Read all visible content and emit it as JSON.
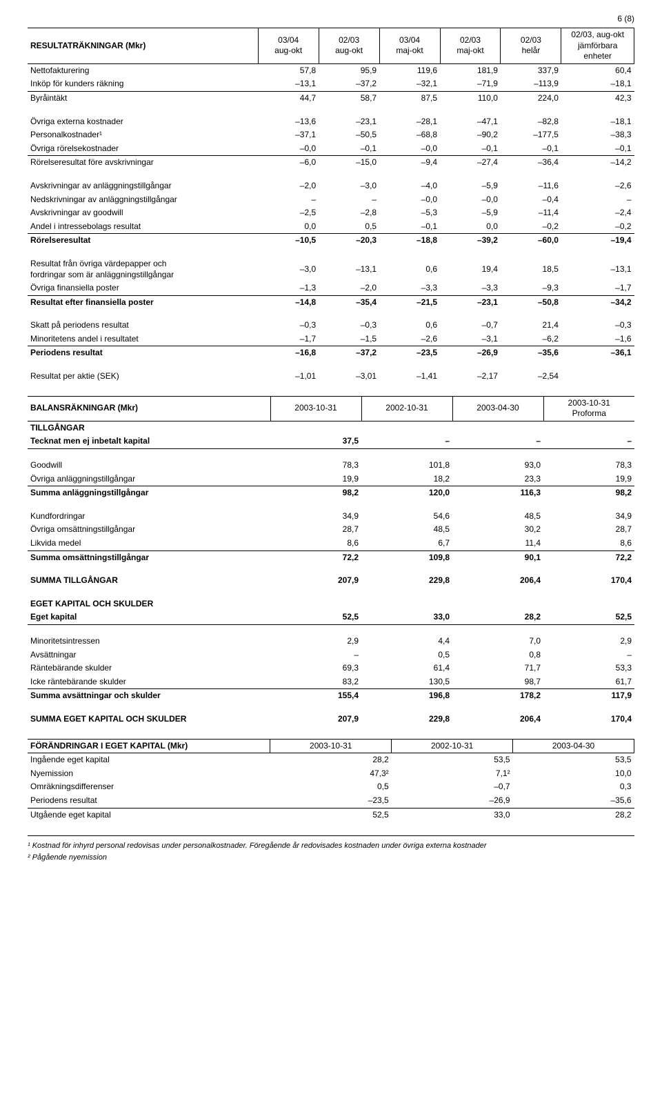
{
  "page_number": "6 (8)",
  "t1": {
    "title": "RESULTATRÄKNINGAR (Mkr)",
    "headers": [
      "03/04\naug-okt",
      "02/03\naug-okt",
      "03/04\nmaj-okt",
      "02/03\nmaj-okt",
      "02/03\nhelår",
      "02/03, aug-okt\njämförbara\nenheter"
    ],
    "rows": [
      {
        "label": "Nettofakturering",
        "vals": [
          "57,8",
          "95,9",
          "119,6",
          "181,9",
          "337,9",
          "60,4"
        ]
      },
      {
        "label": "Inköp för kunders räkning",
        "vals": [
          "–13,1",
          "–37,2",
          "–32,1",
          "–71,9",
          "–113,9",
          "–18,1"
        ],
        "uline": true
      },
      {
        "label": "Byråintäkt",
        "vals": [
          "44,7",
          "58,7",
          "87,5",
          "110,0",
          "224,0",
          "42,3"
        ]
      },
      {
        "spacer": true
      },
      {
        "label": "Övriga externa kostnader",
        "vals": [
          "–13,6",
          "–23,1",
          "–28,1",
          "–47,1",
          "–82,8",
          "–18,1"
        ]
      },
      {
        "label": "Personalkostnader¹",
        "vals": [
          "–37,1",
          "–50,5",
          "–68,8",
          "–90,2",
          "–177,5",
          "–38,3"
        ]
      },
      {
        "label": "Övriga rörelsekostnader",
        "vals": [
          "–0,0",
          "–0,1",
          "–0,0",
          "–0,1",
          "–0,1",
          "–0,1"
        ],
        "uline": true
      },
      {
        "label": "Rörelseresultat före avskrivningar",
        "vals": [
          "–6,0",
          "–15,0",
          "–9,4",
          "–27,4",
          "–36,4",
          "–14,2"
        ]
      },
      {
        "spacer": true
      },
      {
        "label": "Avskrivningar av anläggningstillgångar",
        "vals": [
          "–2,0",
          "–3,0",
          "–4,0",
          "–5,9",
          "–11,6",
          "–2,6"
        ]
      },
      {
        "label": "Nedskrivningar av anläggningstillgångar",
        "vals": [
          "–",
          "–",
          "–0,0",
          "–0,0",
          "–0,4",
          "–"
        ]
      },
      {
        "label": "Avskrivningar av goodwill",
        "vals": [
          "–2,5",
          "–2,8",
          "–5,3",
          "–5,9",
          "–11,4",
          "–2,4"
        ]
      },
      {
        "label": "Andel i intressebolags resultat",
        "vals": [
          "0,0",
          "0,5",
          "–0,1",
          "0,0",
          "–0,2",
          "–0,2"
        ],
        "uline": true
      },
      {
        "label": "Rörelseresultat",
        "vals": [
          "–10,5",
          "–20,3",
          "–18,8",
          "–39,2",
          "–60,0",
          "–19,4"
        ],
        "bold": true
      },
      {
        "spacer": true
      },
      {
        "label": "Resultat från övriga värdepapper och\nfordringar som är anläggningstillgångar",
        "vals": [
          "–3,0",
          "–13,1",
          "0,6",
          "19,4",
          "18,5",
          "–13,1"
        ]
      },
      {
        "label": "Övriga finansiella poster",
        "vals": [
          "–1,3",
          "–2,0",
          "–3,3",
          "–3,3",
          "–9,3",
          "–1,7"
        ],
        "uline": true
      },
      {
        "label": "Resultat efter finansiella poster",
        "vals": [
          "–14,8",
          "–35,4",
          "–21,5",
          "–23,1",
          "–50,8",
          "–34,2"
        ],
        "bold": true
      },
      {
        "spacer": true
      },
      {
        "label": "Skatt på periodens resultat",
        "vals": [
          "–0,3",
          "–0,3",
          "0,6",
          "–0,7",
          "21,4",
          "–0,3"
        ]
      },
      {
        "label": "Minoritetens andel i resultatet",
        "vals": [
          "–1,7",
          "–1,5",
          "–2,6",
          "–3,1",
          "–6,2",
          "–1,6"
        ],
        "uline": true
      },
      {
        "label": "Periodens resultat",
        "vals": [
          "–16,8",
          "–37,2",
          "–23,5",
          "–26,9",
          "–35,6",
          "–36,1"
        ],
        "bold": true
      },
      {
        "spacer": true
      },
      {
        "label": "Resultat per aktie (SEK)",
        "vals": [
          "–1,01",
          "–3,01",
          "–1,41",
          "–2,17",
          "–2,54",
          ""
        ]
      }
    ]
  },
  "t2": {
    "title": "BALANSRÄKNINGAR (Mkr)",
    "headers": [
      "2003-10-31",
      "2002-10-31",
      "2003-04-30",
      "2003-10-31\nProforma"
    ],
    "rows": [
      {
        "label": "TILLGÅNGAR",
        "vals": [
          "",
          "",
          "",
          ""
        ],
        "bold": true
      },
      {
        "label": "Tecknat men ej inbetalt kapital",
        "vals": [
          "37,5",
          "–",
          "–",
          "–"
        ],
        "bold": true,
        "uline": true
      },
      {
        "spacer": true
      },
      {
        "label": "Goodwill",
        "vals": [
          "78,3",
          "101,8",
          "93,0",
          "78,3"
        ]
      },
      {
        "label": "Övriga anläggningstillgångar",
        "vals": [
          "19,9",
          "18,2",
          "23,3",
          "19,9"
        ],
        "uline": true
      },
      {
        "label": "Summa anläggningstillgångar",
        "vals": [
          "98,2",
          "120,0",
          "116,3",
          "98,2"
        ],
        "bold": true
      },
      {
        "spacer": true
      },
      {
        "label": "Kundfordringar",
        "vals": [
          "34,9",
          "54,6",
          "48,5",
          "34,9"
        ]
      },
      {
        "label": "Övriga omsättningstillgångar",
        "vals": [
          "28,7",
          "48,5",
          "30,2",
          "28,7"
        ]
      },
      {
        "label": "Likvida medel",
        "vals": [
          "8,6",
          "6,7",
          "11,4",
          "8,6"
        ],
        "uline": true
      },
      {
        "label": "Summa omsättningstillgångar",
        "vals": [
          "72,2",
          "109,8",
          "90,1",
          "72,2"
        ],
        "bold": true
      },
      {
        "spacer": true
      },
      {
        "label": "SUMMA TILLGÅNGAR",
        "vals": [
          "207,9",
          "229,8",
          "206,4",
          "170,4"
        ],
        "bold": true
      },
      {
        "spacer": true
      },
      {
        "label": "EGET KAPITAL OCH SKULDER",
        "vals": [
          "",
          "",
          "",
          ""
        ],
        "bold": true
      },
      {
        "label": "Eget kapital",
        "vals": [
          "52,5",
          "33,0",
          "28,2",
          "52,5"
        ],
        "bold": true,
        "uline": true
      },
      {
        "spacer": true
      },
      {
        "label": "Minoritetsintressen",
        "vals": [
          "2,9",
          "4,4",
          "7,0",
          "2,9"
        ]
      },
      {
        "label": "Avsättningar",
        "vals": [
          "–",
          "0,5",
          "0,8",
          "–"
        ]
      },
      {
        "label": "Räntebärande skulder",
        "vals": [
          "69,3",
          "61,4",
          "71,7",
          "53,3"
        ]
      },
      {
        "label": "Icke räntebärande skulder",
        "vals": [
          "83,2",
          "130,5",
          "98,7",
          "61,7"
        ],
        "uline": true
      },
      {
        "label": "Summa avsättningar och skulder",
        "vals": [
          "155,4",
          "196,8",
          "178,2",
          "117,9"
        ],
        "bold": true
      },
      {
        "spacer": true
      },
      {
        "label": "SUMMA EGET KAPITAL OCH SKULDER",
        "vals": [
          "207,9",
          "229,8",
          "206,4",
          "170,4"
        ],
        "bold": true
      }
    ]
  },
  "t3": {
    "title": "FÖRÄNDRINGAR I EGET KAPITAL (Mkr)",
    "headers": [
      "2003-10-31",
      "2002-10-31",
      "2003-04-30"
    ],
    "rows": [
      {
        "label": "Ingående eget kapital",
        "vals": [
          "28,2",
          "53,5",
          "53,5"
        ]
      },
      {
        "label": "Nyemission",
        "vals": [
          "47,3²",
          "7,1²",
          "10,0"
        ]
      },
      {
        "label": "Omräkningsdifferenser",
        "vals": [
          "0,5",
          "–0,7",
          "0,3"
        ]
      },
      {
        "label": "Periodens resultat",
        "vals": [
          "–23,5",
          "–26,9",
          "–35,6"
        ],
        "uline": true
      },
      {
        "label": "Utgående eget kapital",
        "vals": [
          "52,5",
          "33,0",
          "28,2"
        ]
      }
    ]
  },
  "footnotes": {
    "f1": "¹ Kostnad för inhyrd personal redovisas under personalkostnader. Föregående år redovisades kostnaden under övriga externa kostnader",
    "f2": "² Pågående nyemission"
  },
  "style": {
    "colwidths_t1": [
      "38%",
      "10%",
      "10%",
      "10%",
      "10%",
      "10%",
      "12%"
    ],
    "colwidths_t2": [
      "40%",
      "15%",
      "15%",
      "15%",
      "15%"
    ],
    "colwidths_t3": [
      "40%",
      "20%",
      "20%",
      "20%"
    ]
  }
}
